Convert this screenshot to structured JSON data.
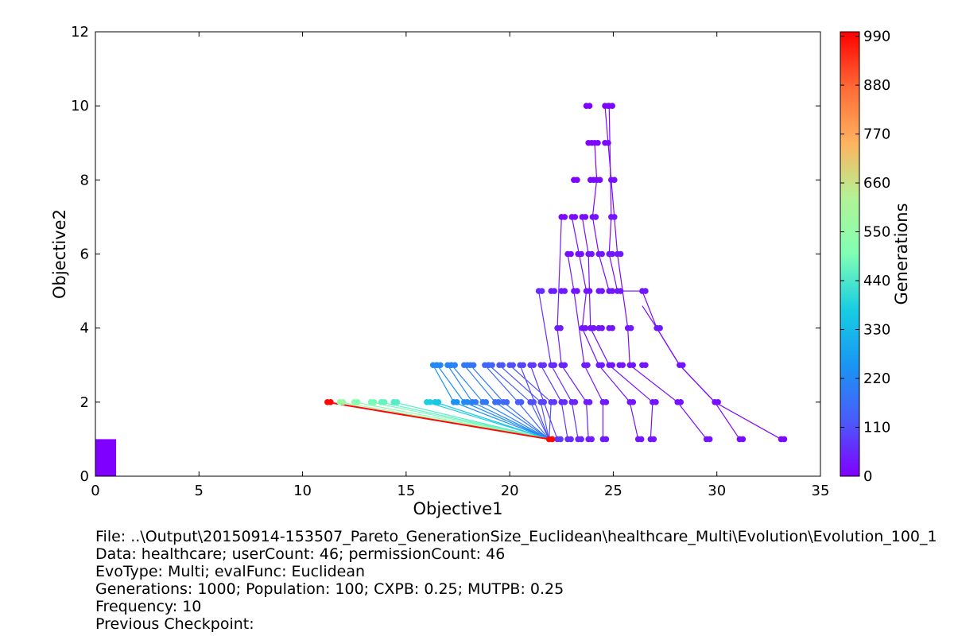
{
  "chart_data": {
    "type": "scatter",
    "xlabel": "Objective1",
    "ylabel": "Objective2",
    "xlim": [
      0,
      35
    ],
    "ylim": [
      0,
      12
    ],
    "xticks": [
      0,
      5,
      10,
      15,
      20,
      25,
      30,
      35
    ],
    "yticks": [
      0,
      2,
      4,
      6,
      8,
      10,
      12
    ],
    "grid": false,
    "colorbar": {
      "label": "Generations",
      "range": [
        0,
        1000
      ],
      "ticks": [
        0,
        110,
        220,
        330,
        440,
        550,
        660,
        770,
        880,
        990
      ],
      "colormap": "rainbow"
    },
    "points": [
      {
        "x": 23.7,
        "y": 10,
        "g": 0
      },
      {
        "x": 24.6,
        "y": 10,
        "g": 5
      },
      {
        "x": 24.8,
        "y": 10,
        "g": 10
      },
      {
        "x": 23.8,
        "y": 9,
        "g": 5
      },
      {
        "x": 24.1,
        "y": 9,
        "g": 10
      },
      {
        "x": 24.6,
        "y": 9,
        "g": 15
      },
      {
        "x": 23.1,
        "y": 8,
        "g": 5
      },
      {
        "x": 23.9,
        "y": 8,
        "g": 10
      },
      {
        "x": 24.2,
        "y": 8,
        "g": 15
      },
      {
        "x": 24.9,
        "y": 8,
        "g": 20
      },
      {
        "x": 22.5,
        "y": 7,
        "g": 10
      },
      {
        "x": 23.0,
        "y": 7,
        "g": 15
      },
      {
        "x": 23.5,
        "y": 7,
        "g": 20
      },
      {
        "x": 24.0,
        "y": 7,
        "g": 25
      },
      {
        "x": 24.9,
        "y": 7,
        "g": 25
      },
      {
        "x": 22.8,
        "y": 6,
        "g": 15
      },
      {
        "x": 23.3,
        "y": 6,
        "g": 20
      },
      {
        "x": 23.8,
        "y": 6,
        "g": 25
      },
      {
        "x": 24.3,
        "y": 6,
        "g": 30
      },
      {
        "x": 24.8,
        "y": 6,
        "g": 30
      },
      {
        "x": 25.2,
        "y": 6,
        "g": 35
      },
      {
        "x": 21.4,
        "y": 5,
        "g": 60
      },
      {
        "x": 22.0,
        "y": 5,
        "g": 40
      },
      {
        "x": 22.5,
        "y": 5,
        "g": 35
      },
      {
        "x": 23.1,
        "y": 5,
        "g": 25
      },
      {
        "x": 23.7,
        "y": 5,
        "g": 25
      },
      {
        "x": 24.3,
        "y": 5,
        "g": 30
      },
      {
        "x": 24.8,
        "y": 5,
        "g": 30
      },
      {
        "x": 25.2,
        "y": 5,
        "g": 35
      },
      {
        "x": 26.4,
        "y": 5,
        "g": 35
      },
      {
        "x": 22.3,
        "y": 4,
        "g": 40
      },
      {
        "x": 23.5,
        "y": 4,
        "g": 30
      },
      {
        "x": 23.9,
        "y": 4,
        "g": 30
      },
      {
        "x": 24.3,
        "y": 4,
        "g": 30
      },
      {
        "x": 24.8,
        "y": 4,
        "g": 30
      },
      {
        "x": 25.7,
        "y": 4,
        "g": 35
      },
      {
        "x": 27.1,
        "y": 4,
        "g": 35
      },
      {
        "x": 16.3,
        "y": 3,
        "g": 230
      },
      {
        "x": 16.5,
        "y": 3,
        "g": 220
      },
      {
        "x": 17.0,
        "y": 3,
        "g": 215
      },
      {
        "x": 17.2,
        "y": 3,
        "g": 210
      },
      {
        "x": 17.8,
        "y": 3,
        "g": 190
      },
      {
        "x": 18.1,
        "y": 3,
        "g": 180
      },
      {
        "x": 18.8,
        "y": 3,
        "g": 150
      },
      {
        "x": 19.0,
        "y": 3,
        "g": 140
      },
      {
        "x": 19.5,
        "y": 3,
        "g": 120
      },
      {
        "x": 20.0,
        "y": 3,
        "g": 110
      },
      {
        "x": 20.5,
        "y": 3,
        "g": 95
      },
      {
        "x": 21.0,
        "y": 3,
        "g": 80
      },
      {
        "x": 21.5,
        "y": 3,
        "g": 70
      },
      {
        "x": 22.0,
        "y": 3,
        "g": 60
      },
      {
        "x": 22.5,
        "y": 3,
        "g": 50
      },
      {
        "x": 23.6,
        "y": 3,
        "g": 40
      },
      {
        "x": 24.3,
        "y": 3,
        "g": 35
      },
      {
        "x": 24.8,
        "y": 3,
        "g": 30
      },
      {
        "x": 25.3,
        "y": 3,
        "g": 30
      },
      {
        "x": 25.8,
        "y": 3,
        "g": 30
      },
      {
        "x": 26.4,
        "y": 3,
        "g": 30
      },
      {
        "x": 28.2,
        "y": 3,
        "g": 25
      },
      {
        "x": 11.2,
        "y": 2,
        "g": 990
      },
      {
        "x": 11.8,
        "y": 2,
        "g": 560
      },
      {
        "x": 12.5,
        "y": 2,
        "g": 520
      },
      {
        "x": 13.3,
        "y": 2,
        "g": 490
      },
      {
        "x": 13.8,
        "y": 2,
        "g": 470
      },
      {
        "x": 14.4,
        "y": 2,
        "g": 450
      },
      {
        "x": 16.0,
        "y": 2,
        "g": 380
      },
      {
        "x": 16.4,
        "y": 2,
        "g": 360
      },
      {
        "x": 17.3,
        "y": 2,
        "g": 240
      },
      {
        "x": 17.8,
        "y": 2,
        "g": 225
      },
      {
        "x": 18.2,
        "y": 2,
        "g": 200
      },
      {
        "x": 18.7,
        "y": 2,
        "g": 185
      },
      {
        "x": 19.3,
        "y": 2,
        "g": 165
      },
      {
        "x": 19.7,
        "y": 2,
        "g": 150
      },
      {
        "x": 20.4,
        "y": 2,
        "g": 130
      },
      {
        "x": 21.0,
        "y": 2,
        "g": 110
      },
      {
        "x": 21.5,
        "y": 2,
        "g": 95
      },
      {
        "x": 22.0,
        "y": 2,
        "g": 80
      },
      {
        "x": 22.5,
        "y": 2,
        "g": 60
      },
      {
        "x": 23.0,
        "y": 2,
        "g": 50
      },
      {
        "x": 23.7,
        "y": 2,
        "g": 40
      },
      {
        "x": 24.5,
        "y": 2,
        "g": 35
      },
      {
        "x": 25.8,
        "y": 2,
        "g": 30
      },
      {
        "x": 26.9,
        "y": 2,
        "g": 30
      },
      {
        "x": 28.1,
        "y": 2,
        "g": 25
      },
      {
        "x": 29.9,
        "y": 2,
        "g": 20
      },
      {
        "x": 21.9,
        "y": 1,
        "g": 990
      },
      {
        "x": 22.3,
        "y": 1,
        "g": 80
      },
      {
        "x": 22.8,
        "y": 1,
        "g": 60
      },
      {
        "x": 23.3,
        "y": 1,
        "g": 50
      },
      {
        "x": 23.8,
        "y": 1,
        "g": 40
      },
      {
        "x": 24.5,
        "y": 1,
        "g": 35
      },
      {
        "x": 26.2,
        "y": 1,
        "g": 30
      },
      {
        "x": 26.8,
        "y": 1,
        "g": 30
      },
      {
        "x": 29.5,
        "y": 1,
        "g": 25
      },
      {
        "x": 31.1,
        "y": 1,
        "g": 20
      },
      {
        "x": 33.1,
        "y": 1,
        "g": 15
      }
    ],
    "lines": [
      {
        "g": 990,
        "x": [
          11.2,
          21.9
        ],
        "y": [
          2,
          1
        ]
      },
      {
        "g": 560,
        "x": [
          11.8,
          21.9
        ],
        "y": [
          2,
          1
        ]
      },
      {
        "g": 520,
        "x": [
          12.5,
          21.9
        ],
        "y": [
          2,
          1
        ]
      },
      {
        "g": 490,
        "x": [
          13.3,
          21.9
        ],
        "y": [
          2,
          1
        ]
      },
      {
        "g": 470,
        "x": [
          13.8,
          21.9
        ],
        "y": [
          2,
          1
        ]
      },
      {
        "g": 450,
        "x": [
          14.4,
          21.9
        ],
        "y": [
          2,
          1
        ]
      },
      {
        "g": 380,
        "x": [
          16.0,
          21.9
        ],
        "y": [
          2,
          1
        ]
      },
      {
        "g": 360,
        "x": [
          16.4,
          21.9
        ],
        "y": [
          2,
          1
        ]
      },
      {
        "g": 240,
        "x": [
          16.3,
          17.3,
          21.9
        ],
        "y": [
          3,
          2,
          1
        ]
      },
      {
        "g": 230,
        "x": [
          16.5,
          17.8,
          21.9
        ],
        "y": [
          3,
          2,
          1
        ]
      },
      {
        "g": 220,
        "x": [
          17.0,
          18.2,
          21.9
        ],
        "y": [
          3,
          2,
          1
        ]
      },
      {
        "g": 210,
        "x": [
          17.2,
          18.7,
          21.9
        ],
        "y": [
          3,
          2,
          1
        ]
      },
      {
        "g": 190,
        "x": [
          17.8,
          19.3,
          21.9
        ],
        "y": [
          3,
          2,
          1
        ]
      },
      {
        "g": 180,
        "x": [
          18.1,
          19.7,
          21.9
        ],
        "y": [
          3,
          2,
          1
        ]
      },
      {
        "g": 150,
        "x": [
          18.8,
          20.4,
          21.9
        ],
        "y": [
          3,
          2,
          1
        ]
      },
      {
        "g": 140,
        "x": [
          19.0,
          21.0,
          21.9
        ],
        "y": [
          3,
          2,
          1
        ]
      },
      {
        "g": 120,
        "x": [
          19.5,
          21.5,
          21.9
        ],
        "y": [
          3,
          2,
          1
        ]
      },
      {
        "g": 110,
        "x": [
          20.0,
          22.0,
          21.9
        ],
        "y": [
          3,
          2,
          1
        ]
      },
      {
        "g": 95,
        "x": [
          20.5,
          21.9
        ],
        "y": [
          3,
          1
        ]
      },
      {
        "g": 80,
        "x": [
          21.0,
          22.3
        ],
        "y": [
          3,
          1
        ]
      },
      {
        "g": 70,
        "x": [
          21.5,
          22.5,
          22.8
        ],
        "y": [
          3,
          2,
          1
        ]
      },
      {
        "g": 60,
        "x": [
          21.4,
          22.0,
          23.0,
          23.3
        ],
        "y": [
          5,
          3,
          2,
          1
        ]
      },
      {
        "g": 40,
        "x": [
          22.5,
          22.3,
          22.5,
          23.7,
          23.8
        ],
        "y": [
          7,
          4,
          3,
          2,
          1
        ]
      },
      {
        "g": 30,
        "x": [
          22.8,
          23.1,
          23.6,
          24.5,
          24.5
        ],
        "y": [
          6,
          5,
          3,
          2,
          1
        ]
      },
      {
        "g": 25,
        "x": [
          23.0,
          23.7,
          23.5,
          24.3,
          25.8,
          26.2
        ],
        "y": [
          7,
          5,
          4,
          3,
          2,
          1
        ]
      },
      {
        "g": 20,
        "x": [
          23.5,
          23.8,
          23.9,
          24.8,
          26.9,
          26.8
        ],
        "y": [
          7,
          6,
          4,
          3,
          2,
          1
        ]
      },
      {
        "g": 15,
        "x": [
          24.6,
          24.9,
          25.2,
          25.7,
          25.8,
          28.1,
          29.5
        ],
        "y": [
          10,
          8,
          6,
          4,
          3,
          2,
          1
        ]
      },
      {
        "g": 10,
        "x": [
          24.8,
          24.9,
          24.8,
          25.2,
          26.4,
          27.1,
          28.2,
          29.9,
          31.1
        ],
        "y": [
          10,
          7,
          6,
          5,
          5,
          4,
          3,
          2,
          1
        ]
      },
      {
        "g": 5,
        "x": [
          24.1,
          24.2,
          24.0,
          24.3,
          24.8
        ],
        "y": [
          9,
          8,
          7,
          6,
          5
        ]
      },
      {
        "g": 8,
        "x": [
          26.4,
          27.1,
          28.2,
          29.9,
          33.1
        ],
        "y": [
          4.6,
          4,
          3,
          2,
          1
        ]
      }
    ],
    "bars": [
      {
        "x": 0,
        "width": 1,
        "height": 1,
        "g": 0
      }
    ]
  },
  "info": {
    "file": "File: ..\\Output\\20150914-153507_Pareto_GenerationSize_Euclidean\\healthcare_Multi\\Evolution\\Evolution_100_1",
    "data": "Data: healthcare; userCount: 46; permissionCount: 46",
    "evo": "EvoType: Multi; evalFunc: Euclidean",
    "gens": "Generations: 1000; Population: 100; CXPB: 0.25; MUTPB: 0.25",
    "freq": "Frequency: 10",
    "prev": "Previous Checkpoint:"
  }
}
